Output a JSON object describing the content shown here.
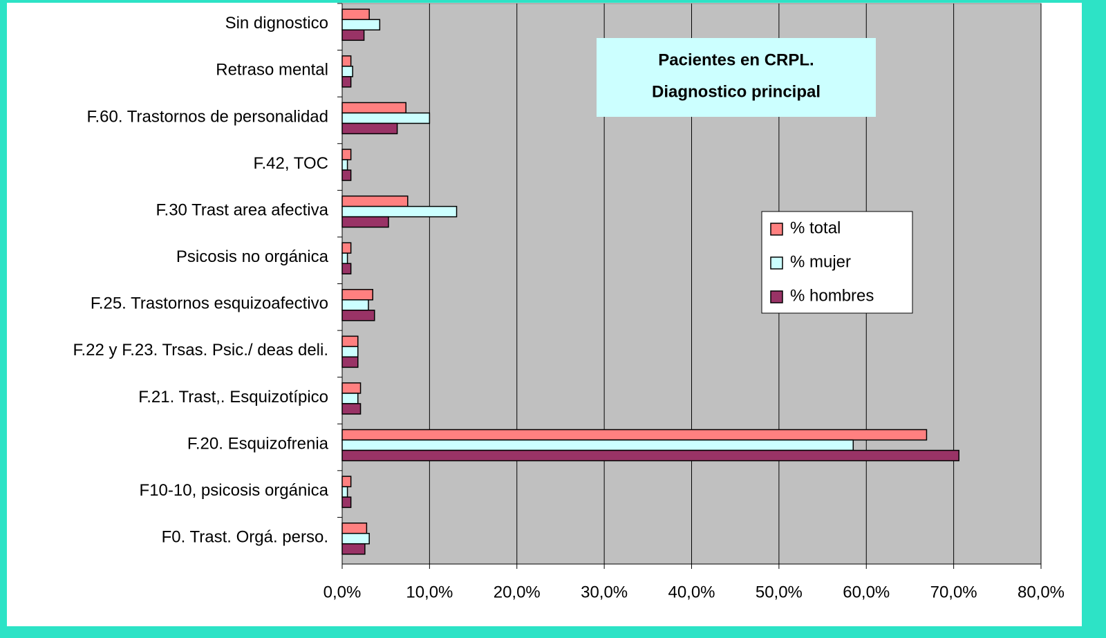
{
  "chart_data": {
    "type": "hbar",
    "title": [
      "Pacientes en CRPL.",
      "Diagnostico principal"
    ],
    "categories": [
      "Sin dignostico",
      "Retraso mental",
      "F.60. Trastornos de personalidad",
      "F.42, TOC",
      "F.30 Trast area afectiva",
      "Psicosis no orgánica",
      "F.25. Trastornos esquizoafectivo",
      "F.22 y F.23. Trsas. Psic./ deas deli.",
      "F.21. Trast,. Esquizotípico",
      "F.20. Esquizofrenia",
      "F10-10, psicosis orgánica",
      "F0. Trast. Orgá. perso."
    ],
    "series": [
      {
        "name": "% total",
        "color": "#ff8080",
        "values": [
          3.1,
          1.0,
          7.3,
          1.0,
          7.5,
          1.0,
          3.5,
          1.8,
          2.1,
          66.9,
          1.0,
          2.8
        ]
      },
      {
        "name": "% mujer",
        "color": "#ccffff",
        "values": [
          4.3,
          1.2,
          10.0,
          0.6,
          13.1,
          0.6,
          3.0,
          1.8,
          1.8,
          58.5,
          0.6,
          3.1
        ]
      },
      {
        "name": "% hombres",
        "color": "#993366",
        "values": [
          2.5,
          1.0,
          6.3,
          1.0,
          5.3,
          1.0,
          3.7,
          1.8,
          2.1,
          70.6,
          1.0,
          2.6
        ]
      }
    ],
    "xlim": [
      0,
      80
    ],
    "xticks": [
      {
        "value": 0,
        "label": "0,0%"
      },
      {
        "value": 10,
        "label": "10,0%"
      },
      {
        "value": 20,
        "label": "20,0%"
      },
      {
        "value": 30,
        "label": "30,0%"
      },
      {
        "value": 40,
        "label": "40,0%"
      },
      {
        "value": 50,
        "label": "50,0%"
      },
      {
        "value": 60,
        "label": "60,0%"
      },
      {
        "value": 70,
        "label": "70,0%"
      },
      {
        "value": 80,
        "label": "80,0%"
      }
    ],
    "grid": true,
    "plot_background": "#c0c0c0"
  }
}
